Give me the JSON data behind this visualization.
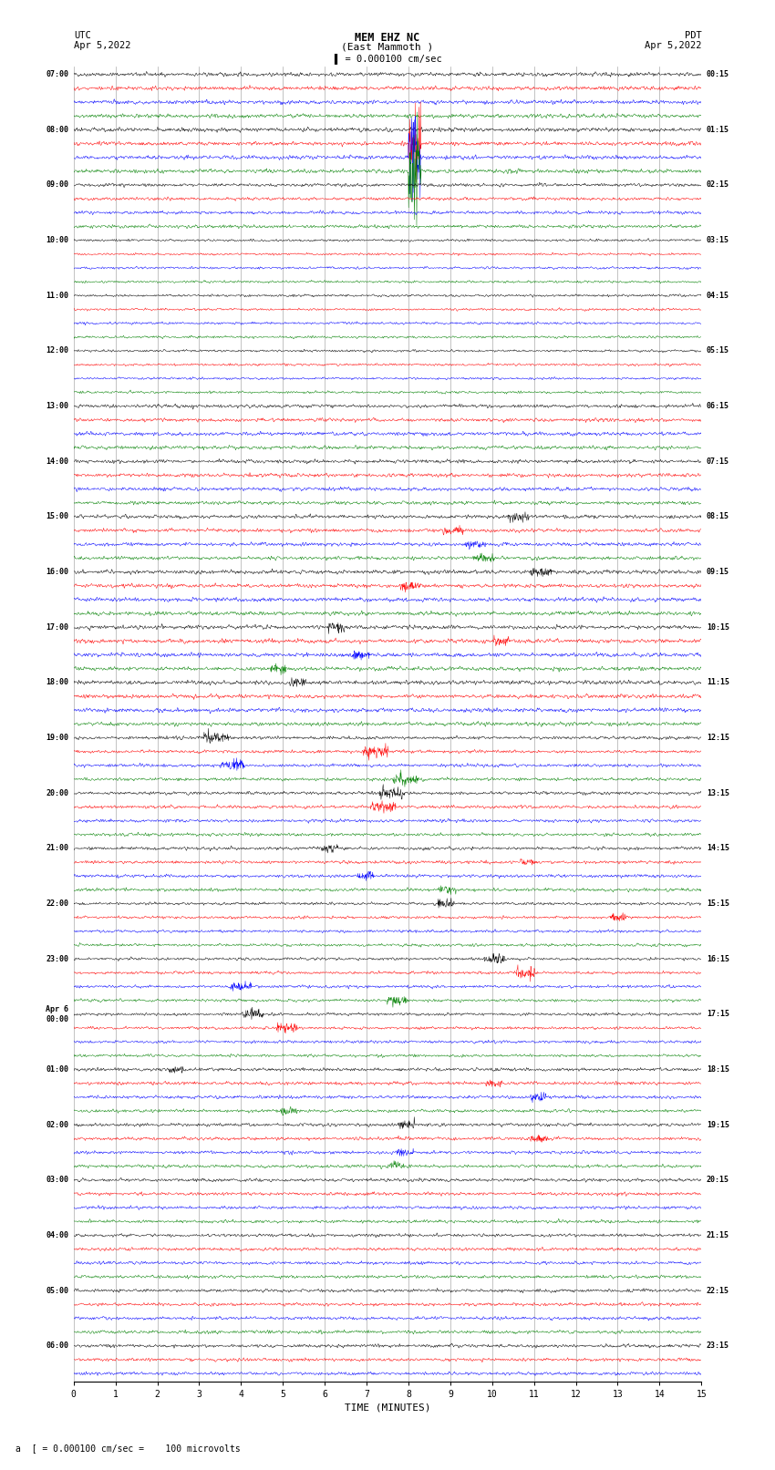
{
  "title_line1": "MEM EHZ NC",
  "title_line2": "(East Mammoth )",
  "scale_text": "= 0.000100 cm/sec",
  "left_header": "UTC",
  "left_date": "Apr 5,2022",
  "right_header": "PDT",
  "right_date": "Apr 5,2022",
  "xlabel": "TIME (MINUTES)",
  "footer_text": "a  [ = 0.000100 cm/sec =    100 microvolts",
  "bg_color": "#ffffff",
  "trace_colors": [
    "#000000",
    "#ff0000",
    "#0000ff",
    "#008000"
  ],
  "utc_labels": [
    "07:00",
    "",
    "",
    "",
    "08:00",
    "",
    "",
    "",
    "09:00",
    "",
    "",
    "",
    "10:00",
    "",
    "",
    "",
    "11:00",
    "",
    "",
    "",
    "12:00",
    "",
    "",
    "",
    "13:00",
    "",
    "",
    "",
    "14:00",
    "",
    "",
    "",
    "15:00",
    "",
    "",
    "",
    "16:00",
    "",
    "",
    "",
    "17:00",
    "",
    "",
    "",
    "18:00",
    "",
    "",
    "",
    "19:00",
    "",
    "",
    "",
    "20:00",
    "",
    "",
    "",
    "21:00",
    "",
    "",
    "",
    "22:00",
    "",
    "",
    "",
    "23:00",
    "",
    "",
    "",
    "Apr 6\n00:00",
    "",
    "",
    "",
    "01:00",
    "",
    "",
    "",
    "02:00",
    "",
    "",
    "",
    "03:00",
    "",
    "",
    "",
    "04:00",
    "",
    "",
    "",
    "05:00",
    "",
    "",
    "",
    "06:00",
    "",
    ""
  ],
  "pdt_labels": [
    "00:15",
    "",
    "",
    "",
    "01:15",
    "",
    "",
    "",
    "02:15",
    "",
    "",
    "",
    "03:15",
    "",
    "",
    "",
    "04:15",
    "",
    "",
    "",
    "05:15",
    "",
    "",
    "",
    "06:15",
    "",
    "",
    "",
    "07:15",
    "",
    "",
    "",
    "08:15",
    "",
    "",
    "",
    "09:15",
    "",
    "",
    "",
    "10:15",
    "",
    "",
    "",
    "11:15",
    "",
    "",
    "",
    "12:15",
    "",
    "",
    "",
    "13:15",
    "",
    "",
    "",
    "14:15",
    "",
    "",
    "",
    "15:15",
    "",
    "",
    "",
    "16:15",
    "",
    "",
    "",
    "17:15",
    "",
    "",
    "",
    "18:15",
    "",
    "",
    "",
    "19:15",
    "",
    "",
    "",
    "20:15",
    "",
    "",
    "",
    "21:15",
    "",
    "",
    "",
    "22:15",
    "",
    "",
    "",
    "23:15",
    "",
    ""
  ],
  "n_rows": 95,
  "minutes": 15,
  "samples_per_row": 1800
}
